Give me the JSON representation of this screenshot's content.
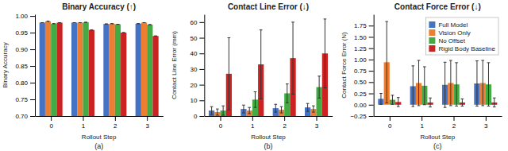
{
  "chart_data": [
    {
      "type": "bar",
      "title": "Binary Accuracy (↑)",
      "xlabel": "Rollout Step",
      "ylabel": "Binary Accuracy",
      "annotations": [
        "(a)"
      ],
      "x": [
        0,
        1,
        2,
        3
      ],
      "xlim": [
        -0.5,
        3.5
      ],
      "xticks": [
        0,
        1,
        2,
        3
      ],
      "ylim": [
        0.7,
        1.005
      ],
      "yticks": [
        {
          "value": 0.7,
          "label": "0.70"
        },
        0.75,
        {
          "value": 0.8,
          "label": "0.80"
        },
        0.85,
        {
          "value": 0.9,
          "label": "0.90"
        },
        0.95,
        {
          "value": 1.0,
          "label": "1.00"
        }
      ],
      "grid": false,
      "series": [
        {
          "color": "#4472c4",
          "values": [
            0.98,
            0.98,
            0.976,
            0.977
          ],
          "errors": [
            0.0,
            0.0,
            0.0,
            0.0
          ]
        },
        {
          "color": "#ed7d31",
          "values": [
            0.984,
            0.98,
            0.977,
            0.98
          ],
          "errors": [
            0.0,
            0.0,
            0.0,
            0.0
          ]
        },
        {
          "color": "#44aa44",
          "values": [
            0.977,
            0.981,
            0.975,
            0.974
          ],
          "errors": [
            0.0,
            0.0,
            0.0,
            0.0
          ]
        },
        {
          "color": "#cc2222",
          "values": [
            0.98,
            0.958,
            0.95,
            0.94
          ],
          "errors": [
            0.0,
            0.0,
            0.0,
            0.0
          ]
        }
      ]
    },
    {
      "type": "bar",
      "title": "Contact Line Error (↓)",
      "xlabel": "Rollout Step",
      "ylabel": "Contact Line Error (mm)",
      "annotations": [
        "(b)"
      ],
      "x": [
        0,
        1,
        2,
        3
      ],
      "xlim": [
        -0.5,
        3.5
      ],
      "xticks": [
        0,
        1,
        2,
        3
      ],
      "ylim": [
        0,
        65
      ],
      "yticks": [
        0,
        10,
        20,
        30,
        40,
        50,
        60
      ],
      "grid": false,
      "series": [
        {
          "color": "#4472c4",
          "values": [
            3.5,
            4.5,
            5.0,
            5.5
          ],
          "errors": [
            2.5,
            2.5,
            2.5,
            2.5
          ]
        },
        {
          "color": "#ed7d31",
          "values": [
            2.5,
            3.5,
            4.0,
            4.5
          ],
          "errors": [
            2.0,
            2.0,
            2.0,
            2.0
          ]
        },
        {
          "color": "#44aa44",
          "values": [
            3.5,
            10.5,
            14.5,
            18.5
          ],
          "errors": [
            3.0,
            5.0,
            6.0,
            7.0
          ]
        },
        {
          "color": "#cc2222",
          "values": [
            27.0,
            33.0,
            37.0,
            40.0
          ],
          "errors": [
            23.0,
            22.0,
            23.0,
            22.0
          ]
        }
      ]
    },
    {
      "type": "bar",
      "title": "Contact Force Error (↓)",
      "xlabel": "Rollout Step",
      "ylabel": "Contact Force Error (N)",
      "annotations": [
        "(c)"
      ],
      "x": [
        0,
        1,
        2,
        3
      ],
      "xlim": [
        -0.5,
        3.5
      ],
      "xticks": [
        0,
        1,
        2,
        3
      ],
      "ylim": [
        -0.25,
        2.0
      ],
      "yticks": [
        {
          "value": -0.25,
          "label": "−0.25"
        },
        {
          "value": 0,
          "label": "0.00"
        },
        0.25,
        {
          "value": 0.5,
          "label": "0.50"
        },
        0.75,
        {
          "value": 1.0,
          "label": "1.00"
        },
        1.25,
        {
          "value": 1.5,
          "label": "1.50"
        },
        1.75
      ],
      "grid": false,
      "legend": "upper right",
      "series": [
        {
          "name": "Full Model",
          "color": "#4472c4",
          "values": [
            0.13,
            0.41,
            0.44,
            0.47
          ],
          "errors": [
            0.12,
            0.45,
            0.5,
            0.5
          ]
        },
        {
          "name": "Vision Only",
          "color": "#ed7d31",
          "values": [
            0.94,
            0.48,
            0.48,
            0.48
          ],
          "errors": [
            0.9,
            0.5,
            0.5,
            0.5
          ]
        },
        {
          "name": "No Offset",
          "color": "#44aa44",
          "values": [
            0.11,
            0.42,
            0.45,
            0.45
          ],
          "errors": [
            0.1,
            0.42,
            0.48,
            0.48
          ]
        },
        {
          "name": "Rigid Body Baseline",
          "color": "#cc2222",
          "values": [
            0.06,
            0.05,
            0.05,
            0.05
          ],
          "errors": [
            0.1,
            0.1,
            0.08,
            0.1
          ]
        }
      ]
    }
  ]
}
